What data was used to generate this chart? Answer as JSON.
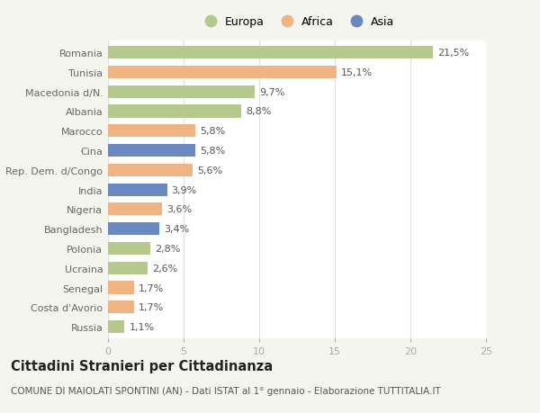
{
  "categories": [
    "Romania",
    "Tunisia",
    "Macedonia d/N.",
    "Albania",
    "Marocco",
    "Cina",
    "Rep. Dem. d/Congo",
    "India",
    "Nigeria",
    "Bangladesh",
    "Polonia",
    "Ucraina",
    "Senegal",
    "Costa d'Avorio",
    "Russia"
  ],
  "values": [
    21.5,
    15.1,
    9.7,
    8.8,
    5.8,
    5.8,
    5.6,
    3.9,
    3.6,
    3.4,
    2.8,
    2.6,
    1.7,
    1.7,
    1.1
  ],
  "labels": [
    "21,5%",
    "15,1%",
    "9,7%",
    "8,8%",
    "5,8%",
    "5,8%",
    "5,6%",
    "3,9%",
    "3,6%",
    "3,4%",
    "2,8%",
    "2,6%",
    "1,7%",
    "1,7%",
    "1,1%"
  ],
  "continents": [
    "Europa",
    "Africa",
    "Europa",
    "Europa",
    "Africa",
    "Asia",
    "Africa",
    "Asia",
    "Africa",
    "Asia",
    "Europa",
    "Europa",
    "Africa",
    "Africa",
    "Europa"
  ],
  "colors": {
    "Europa": "#b5c98e",
    "Africa": "#f0b482",
    "Asia": "#6b88c0"
  },
  "xlim": [
    0,
    25
  ],
  "xticks": [
    0,
    5,
    10,
    15,
    20,
    25
  ],
  "title": "Cittadini Stranieri per Cittadinanza",
  "subtitle": "COMUNE DI MAIOLATI SPONTINI (AN) - Dati ISTAT al 1° gennaio - Elaborazione TUTTITALIA.IT",
  "background_color": "#f5f5f0",
  "bar_background": "#ffffff",
  "grid_color": "#e0e0e0",
  "label_fontsize": 8,
  "tick_fontsize": 8,
  "title_fontsize": 10.5,
  "subtitle_fontsize": 7.5
}
